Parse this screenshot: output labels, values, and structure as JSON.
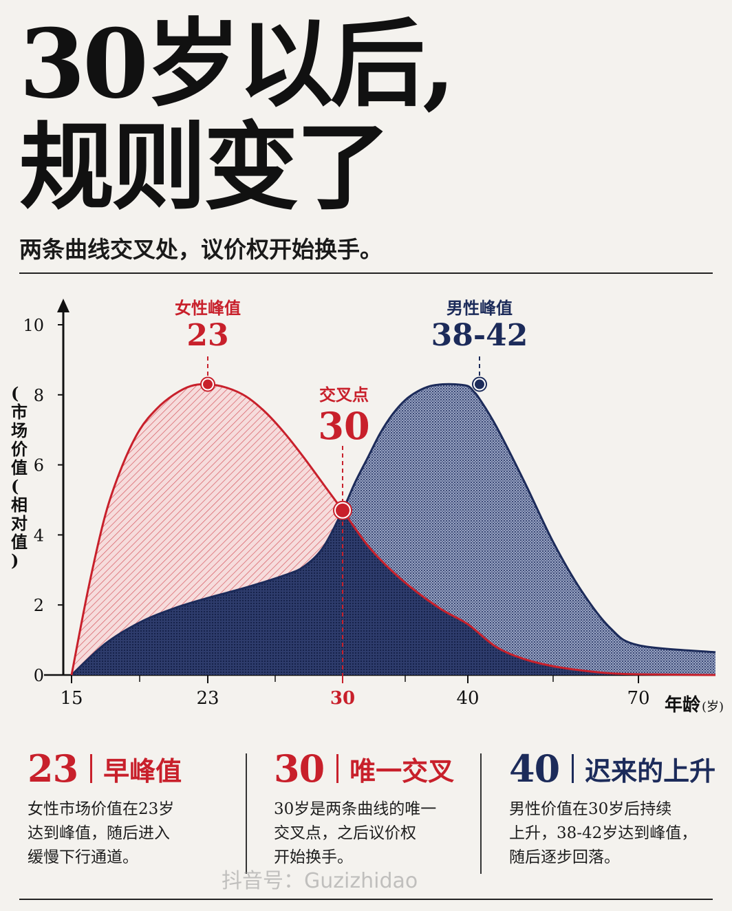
{
  "title": {
    "line1": "30岁以后,",
    "line2": "规则变了"
  },
  "subtitle": "两条曲线交叉处，议价权开始换手。",
  "colors": {
    "red": "#c8202b",
    "navy": "#1c2b5a",
    "ink": "#141414",
    "paper": "#f4f2ee"
  },
  "chart_data": {
    "type": "area",
    "ylabel": "(市场价值(相对值)",
    "xlabel": "年龄",
    "xunit": "(岁)",
    "ylim": [
      0,
      10
    ],
    "yticks": [
      0,
      2,
      4,
      6,
      8,
      10
    ],
    "xticks": [
      15,
      23,
      30,
      40,
      70
    ],
    "grid": false,
    "legend": "none",
    "series": [
      {
        "key": "female",
        "color": "#c8202b",
        "pattern": "diagonal-hatch",
        "points": [
          [
            15,
            0
          ],
          [
            16,
            2.5
          ],
          [
            17,
            4.6
          ],
          [
            18,
            6.0
          ],
          [
            19,
            7.0
          ],
          [
            20,
            7.6
          ],
          [
            21,
            8.0
          ],
          [
            22,
            8.25
          ],
          [
            23,
            8.3
          ],
          [
            24,
            8.2
          ],
          [
            25,
            7.95
          ],
          [
            26,
            7.5
          ],
          [
            27,
            6.9
          ],
          [
            28,
            6.2
          ],
          [
            29,
            5.45
          ],
          [
            30,
            4.7
          ],
          [
            32,
            3.7
          ],
          [
            34,
            2.95
          ],
          [
            36,
            2.35
          ],
          [
            38,
            1.85
          ],
          [
            40,
            1.45
          ],
          [
            45,
            0.8
          ],
          [
            50,
            0.45
          ],
          [
            55,
            0.25
          ],
          [
            60,
            0.13
          ],
          [
            65,
            0.05
          ],
          [
            70,
            0.02
          ],
          [
            75,
            0
          ]
        ]
      },
      {
        "key": "male",
        "color": "#1c2b5a",
        "pattern": "crosshatch",
        "points": [
          [
            15,
            0
          ],
          [
            17,
            0.9
          ],
          [
            19,
            1.5
          ],
          [
            21,
            1.9
          ],
          [
            23,
            2.2
          ],
          [
            25,
            2.5
          ],
          [
            27,
            2.85
          ],
          [
            28,
            3.1
          ],
          [
            29,
            3.65
          ],
          [
            30,
            4.7
          ],
          [
            31,
            5.5
          ],
          [
            32,
            6.2
          ],
          [
            33,
            6.9
          ],
          [
            34,
            7.45
          ],
          [
            35,
            7.85
          ],
          [
            36,
            8.1
          ],
          [
            37,
            8.25
          ],
          [
            38,
            8.3
          ],
          [
            39,
            8.3
          ],
          [
            40,
            8.25
          ],
          [
            41,
            8.1
          ],
          [
            42,
            7.9
          ],
          [
            45,
            7.1
          ],
          [
            50,
            5.5
          ],
          [
            55,
            3.8
          ],
          [
            60,
            2.4
          ],
          [
            65,
            1.35
          ],
          [
            70,
            0.85
          ],
          [
            75,
            0.65
          ]
        ]
      }
    ],
    "annotations": [
      {
        "key": "female_peak",
        "label": "女性峰值",
        "value": "23",
        "x": 23,
        "y": 8.3,
        "color": "#c8202b"
      },
      {
        "key": "cross",
        "label": "交叉点",
        "value": "30",
        "x": 30,
        "y": 4.7,
        "color": "#c8202b"
      },
      {
        "key": "male_peak",
        "label": "男性峰值",
        "value": "38-42",
        "x": 40,
        "y": 8.3,
        "color": "#1c2b5a"
      }
    ]
  },
  "cards": [
    {
      "num": "23",
      "label": "早峰值",
      "color": "#c8202b",
      "lines": [
        "女性市场价值在23岁",
        "达到峰值，随后进入",
        "缓慢下行通道。"
      ]
    },
    {
      "num": "30",
      "label": "唯一交叉",
      "color": "#c8202b",
      "lines": [
        "30岁是两条曲线的唯一",
        "交叉点，之后议价权",
        "开始换手。"
      ]
    },
    {
      "num": "40",
      "label": "迟来的上升",
      "color": "#1c2b5a",
      "lines": [
        "男性价值在30岁后持续",
        "上升，38-42岁达到峰值，",
        "随后逐步回落。"
      ]
    }
  ],
  "watermark": "抖音号：Guzizhidao"
}
